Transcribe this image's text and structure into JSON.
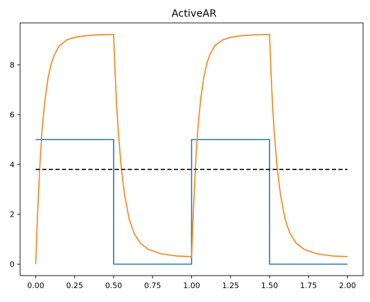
{
  "chart_data": {
    "type": "line",
    "title": "ActiveAR",
    "xlabel": "",
    "ylabel": "",
    "xlim": [
      -0.1,
      2.1
    ],
    "ylim": [
      -0.46,
      9.68
    ],
    "xticks": [
      0.0,
      0.25,
      0.5,
      0.75,
      1.0,
      1.25,
      1.5,
      1.75,
      2.0
    ],
    "xtick_labels": [
      "0.00",
      "0.25",
      "0.50",
      "0.75",
      "1.00",
      "1.25",
      "1.50",
      "1.75",
      "2.00"
    ],
    "yticks": [
      0,
      2,
      4,
      6,
      8
    ],
    "ytick_labels": [
      "0",
      "2",
      "4",
      "6",
      "8"
    ],
    "grid": false,
    "series": [
      {
        "color": "#1f77b4",
        "style": "solid",
        "x": [
          0.0,
          0.5,
          0.5,
          1.0,
          1.0,
          1.5,
          1.5,
          2.0
        ],
        "y": [
          5.0,
          5.0,
          0.0,
          0.0,
          5.0,
          5.0,
          0.0,
          0.0
        ]
      },
      {
        "color": "#ff7f0e",
        "style": "solid",
        "x": [
          0.0,
          0.01,
          0.02,
          0.03,
          0.04,
          0.05,
          0.06,
          0.08,
          0.1,
          0.12,
          0.15,
          0.2,
          0.25,
          0.3,
          0.35,
          0.4,
          0.45,
          0.5,
          0.51,
          0.52,
          0.53,
          0.55,
          0.57,
          0.6,
          0.63,
          0.67,
          0.72,
          0.8,
          0.9,
          1.0,
          1.01,
          1.02,
          1.03,
          1.04,
          1.05,
          1.06,
          1.08,
          1.1,
          1.12,
          1.15,
          1.2,
          1.25,
          1.3,
          1.35,
          1.4,
          1.45,
          1.5,
          1.51,
          1.52,
          1.53,
          1.55,
          1.57,
          1.6,
          1.63,
          1.67,
          1.72,
          1.8,
          1.9,
          2.0
        ],
        "y": [
          0.0,
          1.7,
          3.1,
          4.3,
          5.3,
          6.0,
          6.6,
          7.5,
          8.05,
          8.4,
          8.75,
          9.0,
          9.1,
          9.15,
          9.18,
          9.2,
          9.21,
          9.22,
          7.6,
          6.3,
          5.3,
          3.8,
          2.8,
          1.8,
          1.25,
          0.85,
          0.6,
          0.42,
          0.33,
          0.3,
          1.9,
          3.3,
          4.5,
          5.4,
          6.1,
          6.7,
          7.55,
          8.1,
          8.45,
          8.77,
          9.0,
          9.1,
          9.15,
          9.18,
          9.2,
          9.21,
          9.22,
          7.6,
          6.3,
          5.3,
          3.8,
          2.8,
          1.8,
          1.25,
          0.85,
          0.6,
          0.42,
          0.33,
          0.3
        ]
      },
      {
        "color": "#000000",
        "style": "dashed",
        "x": [
          0.0,
          2.0
        ],
        "y": [
          3.8,
          3.8
        ]
      }
    ]
  }
}
